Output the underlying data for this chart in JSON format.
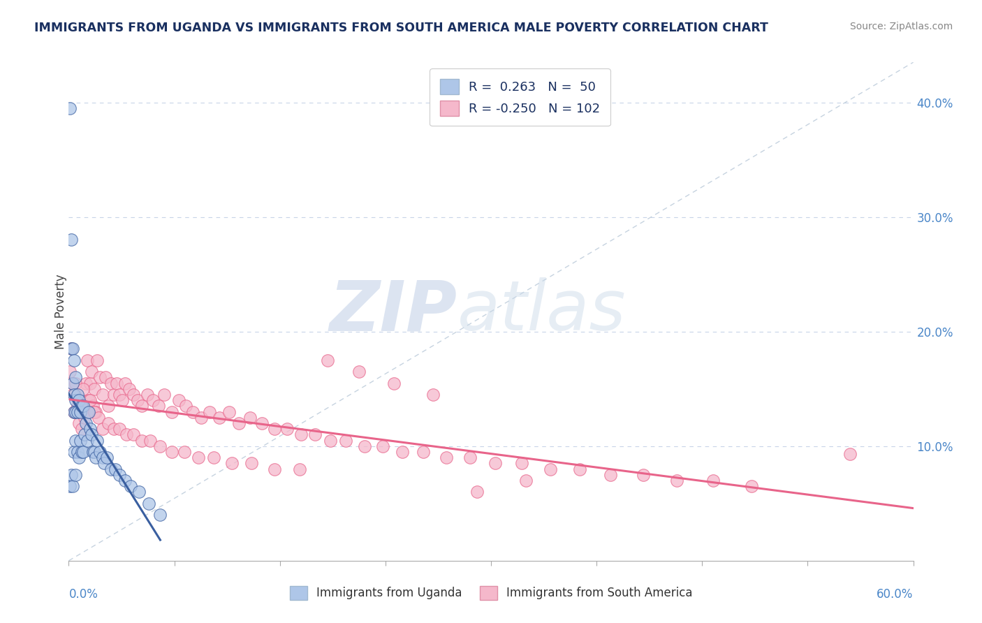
{
  "title": "IMMIGRANTS FROM UGANDA VS IMMIGRANTS FROM SOUTH AMERICA MALE POVERTY CORRELATION CHART",
  "source": "Source: ZipAtlas.com",
  "ylabel": "Male Poverty",
  "ylabel_right_ticks": [
    "10.0%",
    "20.0%",
    "30.0%",
    "40.0%"
  ],
  "ylabel_right_vals": [
    0.1,
    0.2,
    0.3,
    0.4
  ],
  "legend_series1_label": "Immigrants from Uganda",
  "legend_series2_label": "Immigrants from South America",
  "r1": "0.263",
  "n1": "50",
  "r2": "-0.250",
  "n2": "102",
  "color_uganda": "#aec6e8",
  "color_sa": "#f5b8cb",
  "color_uganda_line": "#3a5fa0",
  "color_sa_line": "#e8648a",
  "xlim": [
    0.0,
    0.6
  ],
  "ylim": [
    0.0,
    0.435
  ],
  "uganda_x": [
    0.001,
    0.001,
    0.002,
    0.002,
    0.002,
    0.003,
    0.003,
    0.003,
    0.004,
    0.004,
    0.004,
    0.004,
    0.005,
    0.005,
    0.005,
    0.005,
    0.005,
    0.006,
    0.006,
    0.006,
    0.007,
    0.007,
    0.008,
    0.008,
    0.009,
    0.009,
    0.01,
    0.01,
    0.011,
    0.012,
    0.013,
    0.014,
    0.015,
    0.016,
    0.017,
    0.018,
    0.019,
    0.02,
    0.022,
    0.024,
    0.025,
    0.027,
    0.03,
    0.033,
    0.036,
    0.04,
    0.044,
    0.05,
    0.057,
    0.065
  ],
  "uganda_y": [
    0.395,
    0.065,
    0.28,
    0.185,
    0.075,
    0.185,
    0.155,
    0.065,
    0.175,
    0.145,
    0.13,
    0.095,
    0.16,
    0.14,
    0.13,
    0.105,
    0.075,
    0.145,
    0.13,
    0.095,
    0.14,
    0.09,
    0.13,
    0.105,
    0.135,
    0.095,
    0.135,
    0.095,
    0.11,
    0.12,
    0.105,
    0.13,
    0.115,
    0.11,
    0.095,
    0.095,
    0.09,
    0.105,
    0.095,
    0.09,
    0.085,
    0.09,
    0.08,
    0.08,
    0.075,
    0.07,
    0.065,
    0.06,
    0.05,
    0.04
  ],
  "sa_x": [
    0.001,
    0.002,
    0.003,
    0.004,
    0.005,
    0.006,
    0.007,
    0.008,
    0.009,
    0.01,
    0.011,
    0.012,
    0.013,
    0.014,
    0.015,
    0.016,
    0.017,
    0.018,
    0.019,
    0.02,
    0.022,
    0.024,
    0.026,
    0.028,
    0.03,
    0.032,
    0.034,
    0.036,
    0.038,
    0.04,
    0.043,
    0.046,
    0.049,
    0.052,
    0.056,
    0.06,
    0.064,
    0.068,
    0.073,
    0.078,
    0.083,
    0.088,
    0.094,
    0.1,
    0.107,
    0.114,
    0.121,
    0.129,
    0.137,
    0.146,
    0.155,
    0.165,
    0.175,
    0.186,
    0.197,
    0.21,
    0.223,
    0.237,
    0.252,
    0.268,
    0.285,
    0.303,
    0.322,
    0.342,
    0.363,
    0.385,
    0.408,
    0.432,
    0.458,
    0.485,
    0.003,
    0.005,
    0.008,
    0.01,
    0.013,
    0.015,
    0.018,
    0.021,
    0.024,
    0.028,
    0.032,
    0.036,
    0.041,
    0.046,
    0.052,
    0.058,
    0.065,
    0.073,
    0.082,
    0.092,
    0.103,
    0.116,
    0.13,
    0.146,
    0.164,
    0.184,
    0.206,
    0.231,
    0.259,
    0.29,
    0.325,
    0.555
  ],
  "sa_y": [
    0.165,
    0.185,
    0.155,
    0.13,
    0.145,
    0.135,
    0.12,
    0.14,
    0.115,
    0.13,
    0.125,
    0.155,
    0.175,
    0.14,
    0.155,
    0.165,
    0.135,
    0.15,
    0.13,
    0.175,
    0.16,
    0.145,
    0.16,
    0.135,
    0.155,
    0.145,
    0.155,
    0.145,
    0.14,
    0.155,
    0.15,
    0.145,
    0.14,
    0.135,
    0.145,
    0.14,
    0.135,
    0.145,
    0.13,
    0.14,
    0.135,
    0.13,
    0.125,
    0.13,
    0.125,
    0.13,
    0.12,
    0.125,
    0.12,
    0.115,
    0.115,
    0.11,
    0.11,
    0.105,
    0.105,
    0.1,
    0.1,
    0.095,
    0.095,
    0.09,
    0.09,
    0.085,
    0.085,
    0.08,
    0.08,
    0.075,
    0.075,
    0.07,
    0.07,
    0.065,
    0.145,
    0.155,
    0.135,
    0.15,
    0.13,
    0.14,
    0.13,
    0.125,
    0.115,
    0.12,
    0.115,
    0.115,
    0.11,
    0.11,
    0.105,
    0.105,
    0.1,
    0.095,
    0.095,
    0.09,
    0.09,
    0.085,
    0.085,
    0.08,
    0.08,
    0.175,
    0.165,
    0.155,
    0.145,
    0.06,
    0.07,
    0.093
  ]
}
